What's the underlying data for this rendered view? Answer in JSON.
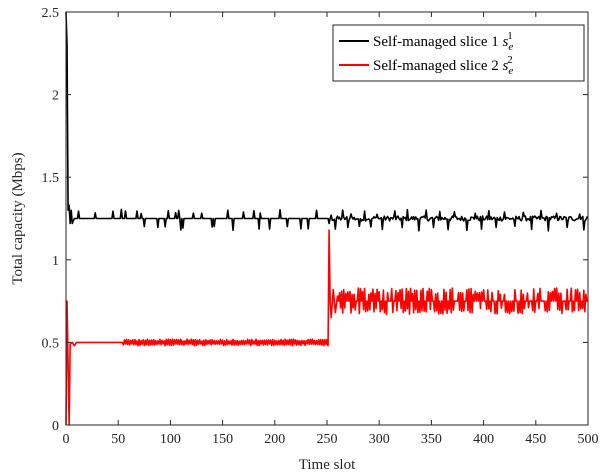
{
  "chart_data": {
    "type": "line",
    "title": "",
    "xlabel": "Time slot",
    "ylabel": "Total capacity (Mbps)",
    "xlim": [
      0,
      500
    ],
    "ylim": [
      0,
      2.5
    ],
    "xticks": [
      0,
      50,
      100,
      150,
      200,
      250,
      300,
      350,
      400,
      450,
      500
    ],
    "yticks": [
      0,
      0.5,
      1,
      1.5,
      2,
      2.5
    ],
    "ytick_labels": [
      "0",
      "0.5",
      "1",
      "1.5",
      "2",
      "2.5"
    ],
    "grid": false,
    "legend_position": "top-right",
    "series": [
      {
        "name": "Self-managed slice 1",
        "legend_symbol": "s",
        "legend_subscript": "e",
        "legend_superscript": "1",
        "color": "#000000",
        "baseline": 1.25,
        "key_points": [
          [
            0,
            2.5
          ],
          [
            1,
            2.3
          ],
          [
            2,
            1.3
          ],
          [
            3,
            1.33
          ],
          [
            4,
            1.22
          ],
          [
            5,
            1.3
          ],
          [
            6,
            1.22
          ],
          [
            8,
            1.25
          ],
          [
            250,
            1.25
          ],
          [
            252,
            1.22
          ],
          [
            254,
            1.27
          ],
          [
            500,
            1.25
          ]
        ],
        "spikes_high": [
          12,
          28,
          45,
          53,
          57,
          68,
          72,
          98,
          105,
          108,
          122,
          130,
          155,
          170,
          180,
          186,
          205,
          240,
          265,
          273,
          286,
          298,
          315,
          327,
          345,
          358,
          372,
          392,
          405,
          420,
          438,
          455,
          470,
          492
        ],
        "spikes_low": [
          75,
          88,
          95,
          110,
          112,
          140,
          142,
          160,
          185,
          195,
          212,
          225,
          232,
          258,
          270,
          281,
          292,
          303,
          322,
          338,
          352,
          366,
          384,
          398,
          412,
          430,
          446,
          462,
          480,
          496
        ],
        "spike_high_value": 1.29,
        "spike_low_value": 1.19
      },
      {
        "name": "Self-managed slice 2",
        "legend_symbol": "s",
        "legend_subscript": "e",
        "legend_superscript": "2",
        "color": "#ff0000",
        "key_points": [
          [
            0,
            0.0
          ],
          [
            1,
            0.75
          ],
          [
            3,
            0.0
          ],
          [
            4,
            0.49
          ],
          [
            6,
            0.5
          ],
          [
            8,
            0.48
          ],
          [
            10,
            0.5
          ],
          [
            250,
            0.5
          ],
          [
            251,
            0.48
          ],
          [
            252,
            1.18
          ],
          [
            253,
            0.75
          ],
          [
            254,
            0.65
          ],
          [
            256,
            0.82
          ],
          [
            258,
            0.68
          ],
          [
            260,
            0.78
          ],
          [
            500,
            0.75
          ]
        ],
        "segment_1": {
          "start": 10,
          "end": 251,
          "base": 0.5,
          "amplitude": 0.02,
          "noisy_from": 55
        },
        "segment_2": {
          "start": 258,
          "end": 500,
          "base": 0.75,
          "amplitude": 0.08
        }
      }
    ]
  }
}
